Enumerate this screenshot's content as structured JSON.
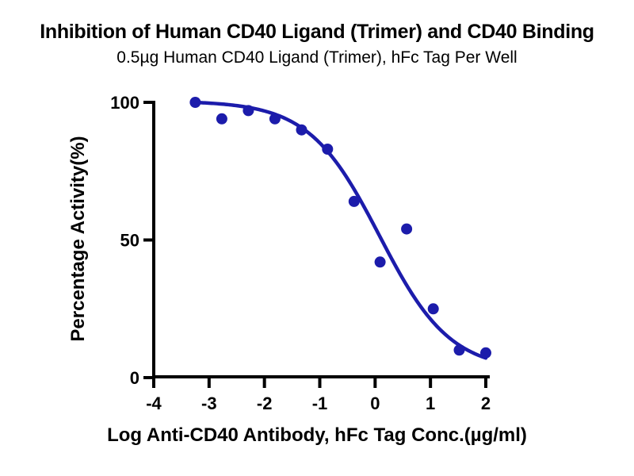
{
  "chart_data": {
    "type": "scatter",
    "title": "Inhibition of Human CD40 Ligand (Trimer) and CD40 Binding",
    "subtitle": "0.5µg Human CD40 Ligand (Trimer), hFc Tag Per Well",
    "xlabel": "Log Anti-CD40 Antibody, hFc Tag Conc.(µg/ml)",
    "ylabel": "Percentage Activity(%)",
    "xlim": [
      -4,
      2
    ],
    "ylim": [
      0,
      100
    ],
    "x_ticks": [
      -4,
      -3,
      -2,
      -1,
      0,
      1,
      2
    ],
    "y_ticks": [
      0,
      50,
      100
    ],
    "grid": false,
    "legend": "none",
    "marker_color": "#1c1cab",
    "line_color": "#1c1cab",
    "axis_color": "#000000",
    "background_color": "#ffffff",
    "series": [
      {
        "name": "Anti-CD40 Antibody, hFc Tag",
        "points": [
          [
            -3.25,
            100
          ],
          [
            -2.77,
            94
          ],
          [
            -2.29,
            97
          ],
          [
            -1.81,
            94
          ],
          [
            -1.33,
            90
          ],
          [
            -0.86,
            83
          ],
          [
            -0.38,
            64
          ],
          [
            0.09,
            42
          ],
          [
            0.57,
            54
          ],
          [
            1.05,
            25
          ],
          [
            1.52,
            10
          ],
          [
            2.0,
            9
          ]
        ],
        "fit_curve": {
          "model": "4PL",
          "top": 100.5,
          "bottom": 2.5,
          "log_ic50": 0.08,
          "hill_slope": 0.68,
          "x_start": -3.25,
          "x_end": 2.0
        }
      }
    ]
  }
}
